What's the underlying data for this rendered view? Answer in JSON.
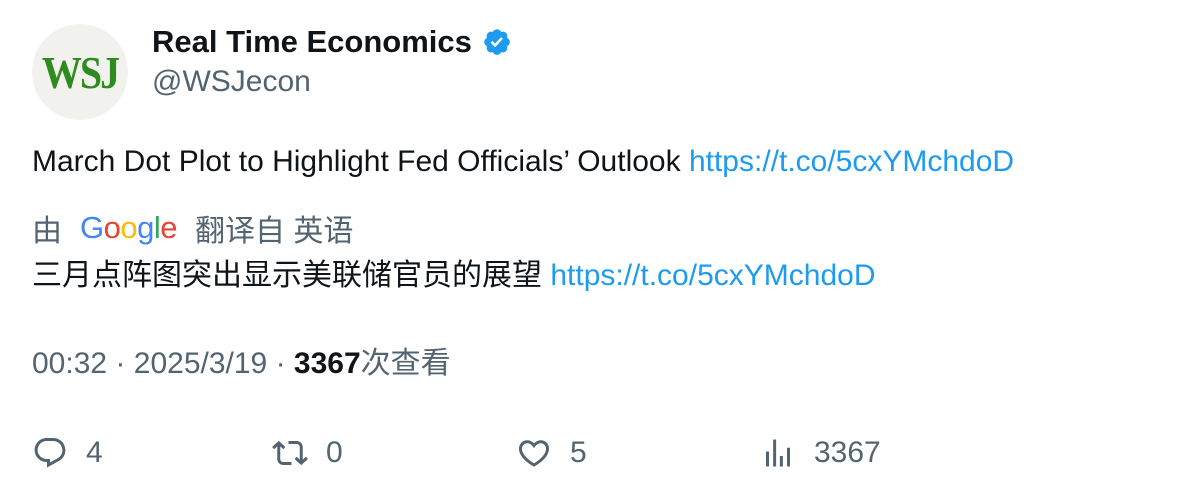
{
  "author": {
    "avatar_text": "WSJ",
    "display_name": "Real Time Economics",
    "handle": "@WSJecon",
    "verified": true
  },
  "tweet": {
    "text": "March Dot Plot to Highlight Fed Officials’ Outlook",
    "link": "https://t.co/5cxYMchdoD"
  },
  "translation": {
    "by_label": "由",
    "provider": "Google",
    "from_label": "翻译自 英语",
    "text": "三月点阵图突出显示美联储官员的展望",
    "link": "https://t.co/5cxYMchdoD"
  },
  "meta": {
    "time": "00:32",
    "separator": "·",
    "date": "2025/3/19",
    "views": "3367",
    "views_suffix": "次查看"
  },
  "actions": {
    "replies": "4",
    "retweets": "0",
    "likes": "5",
    "views": "3367"
  },
  "colors": {
    "link": "#1d9bf0",
    "secondary_text": "#536471",
    "primary_text": "#0f1419",
    "verified_badge": "#1d9bf0",
    "avatar_green": "#2e8b1e"
  },
  "icons": {
    "reply": "reply-icon",
    "retweet": "retweet-icon",
    "like": "heart-icon",
    "views": "analytics-icon",
    "verified": "verified-badge-icon"
  }
}
